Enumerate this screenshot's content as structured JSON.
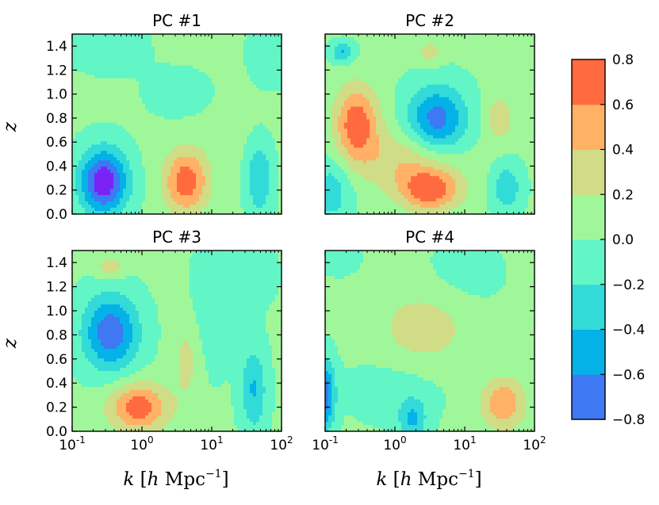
{
  "chart_data": {
    "type": "heatmap",
    "panel_kind": "filled-contour",
    "x_scale": "log",
    "xlim": [
      0.1,
      100
    ],
    "ylim": [
      0.0,
      1.5
    ],
    "xlabel": {
      "var": "k",
      "open": " [",
      "h": "h",
      "unit": " Mpc",
      "exp": "−1",
      "close": "]"
    },
    "ylabel": "z",
    "x_ticks": [
      {
        "base": "10",
        "exp": "-1",
        "value": 0.1
      },
      {
        "base": "10",
        "exp": "0",
        "value": 1
      },
      {
        "base": "10",
        "exp": "1",
        "value": 10
      },
      {
        "base": "10",
        "exp": "2",
        "value": 100
      }
    ],
    "y_ticks": [
      "0.0",
      "0.2",
      "0.4",
      "0.6",
      "0.8",
      "1.0",
      "1.2",
      "1.4"
    ],
    "colorbar": {
      "levels": [
        -0.8,
        -0.6,
        -0.4,
        -0.2,
        0.0,
        0.2,
        0.4,
        0.6,
        0.8
      ],
      "tick_labels": [
        "−0.8",
        "−0.6",
        "−0.4",
        "−0.2",
        "0.0",
        "0.2",
        "0.4",
        "0.6",
        "0.8"
      ],
      "colors": [
        "#3e78f2",
        "#04b2e8",
        "#33dbd8",
        "#62f5c6",
        "#a0f799",
        "#d0dc86",
        "#ffb165",
        "#ff6b3e"
      ],
      "deep_color": "#7a23f6"
    },
    "panels": [
      {
        "title": "PC #1",
        "bumps": [
          {
            "x": -0.55,
            "y": 0.27,
            "amp": -1.0,
            "sx": 0.24,
            "sy": 0.19
          },
          {
            "x": 0.63,
            "y": 0.27,
            "amp": 0.7,
            "sx": 0.22,
            "sy": 0.18
          },
          {
            "x": 1.68,
            "y": 0.3,
            "amp": -0.44,
            "sx": 0.13,
            "sy": 0.22
          },
          {
            "x": 0.6,
            "y": 1.0,
            "amp": -0.16,
            "sx": 0.35,
            "sy": 0.15
          },
          {
            "x": -0.5,
            "y": 1.4,
            "amp": -0.12,
            "sx": 0.4,
            "sy": 0.16
          },
          {
            "x": 1.8,
            "y": 1.3,
            "amp": -0.12,
            "sx": 0.25,
            "sy": 0.2
          },
          {
            "x": 1.1,
            "y": 0.8,
            "amp": 0.05,
            "sx": 0.5,
            "sy": 0.4
          }
        ]
      },
      {
        "title": "PC #2",
        "bumps": [
          {
            "x": -0.55,
            "y": 0.75,
            "amp": 0.72,
            "sx": 0.22,
            "sy": 0.22
          },
          {
            "x": 0.2,
            "y": 0.45,
            "amp": 0.36,
            "sx": 0.5,
            "sy": 0.18
          },
          {
            "x": 0.5,
            "y": 0.2,
            "amp": 0.7,
            "sx": 0.3,
            "sy": 0.12
          },
          {
            "x": 0.6,
            "y": 0.78,
            "amp": -0.75,
            "sx": 0.3,
            "sy": 0.2
          },
          {
            "x": 1.5,
            "y": 0.8,
            "amp": 0.32,
            "sx": 0.14,
            "sy": 0.14
          },
          {
            "x": 0.5,
            "y": 1.35,
            "amp": 0.28,
            "sx": 0.13,
            "sy": 0.07
          },
          {
            "x": -0.75,
            "y": 1.35,
            "amp": -0.45,
            "sx": 0.12,
            "sy": 0.06
          },
          {
            "x": 1.6,
            "y": 0.22,
            "amp": -0.4,
            "sx": 0.15,
            "sy": 0.14
          },
          {
            "x": -0.9,
            "y": 0.2,
            "amp": -0.35,
            "sx": 0.2,
            "sy": 0.2
          }
        ]
      },
      {
        "title": "PC #3",
        "bumps": [
          {
            "x": -0.45,
            "y": 0.82,
            "amp": -0.78,
            "sx": 0.28,
            "sy": 0.22
          },
          {
            "x": -0.05,
            "y": 0.2,
            "amp": 0.7,
            "sx": 0.3,
            "sy": 0.14
          },
          {
            "x": 0.65,
            "y": 0.6,
            "amp": 0.24,
            "sx": 0.14,
            "sy": 0.25
          },
          {
            "x": 1.6,
            "y": 0.35,
            "amp": -0.45,
            "sx": 0.13,
            "sy": 0.25
          },
          {
            "x": -0.45,
            "y": 1.36,
            "amp": 0.32,
            "sx": 0.15,
            "sy": 0.06
          },
          {
            "x": 1.0,
            "y": 1.0,
            "amp": -0.18,
            "sx": 0.2,
            "sy": 0.35
          },
          {
            "x": 1.5,
            "y": 1.3,
            "amp": -0.12,
            "sx": 0.3,
            "sy": 0.2
          }
        ]
      },
      {
        "title": "PC #4",
        "bumps": [
          {
            "x": -1.0,
            "y": 0.3,
            "amp": -0.75,
            "sx": 0.1,
            "sy": 0.2
          },
          {
            "x": 0.4,
            "y": 0.85,
            "amp": 0.3,
            "sx": 0.45,
            "sy": 0.22
          },
          {
            "x": 1.55,
            "y": 0.23,
            "amp": 0.55,
            "sx": 0.22,
            "sy": 0.15
          },
          {
            "x": 0.25,
            "y": 0.1,
            "amp": -0.45,
            "sx": 0.14,
            "sy": 0.12
          },
          {
            "x": 0.0,
            "y": 0.35,
            "amp": -0.12,
            "sx": 0.5,
            "sy": 0.2
          },
          {
            "x": 1.0,
            "y": 1.3,
            "amp": -0.1,
            "sx": 0.4,
            "sy": 0.2
          },
          {
            "x": -0.8,
            "y": 1.45,
            "amp": -0.15,
            "sx": 0.2,
            "sy": 0.1
          }
        ]
      }
    ]
  }
}
